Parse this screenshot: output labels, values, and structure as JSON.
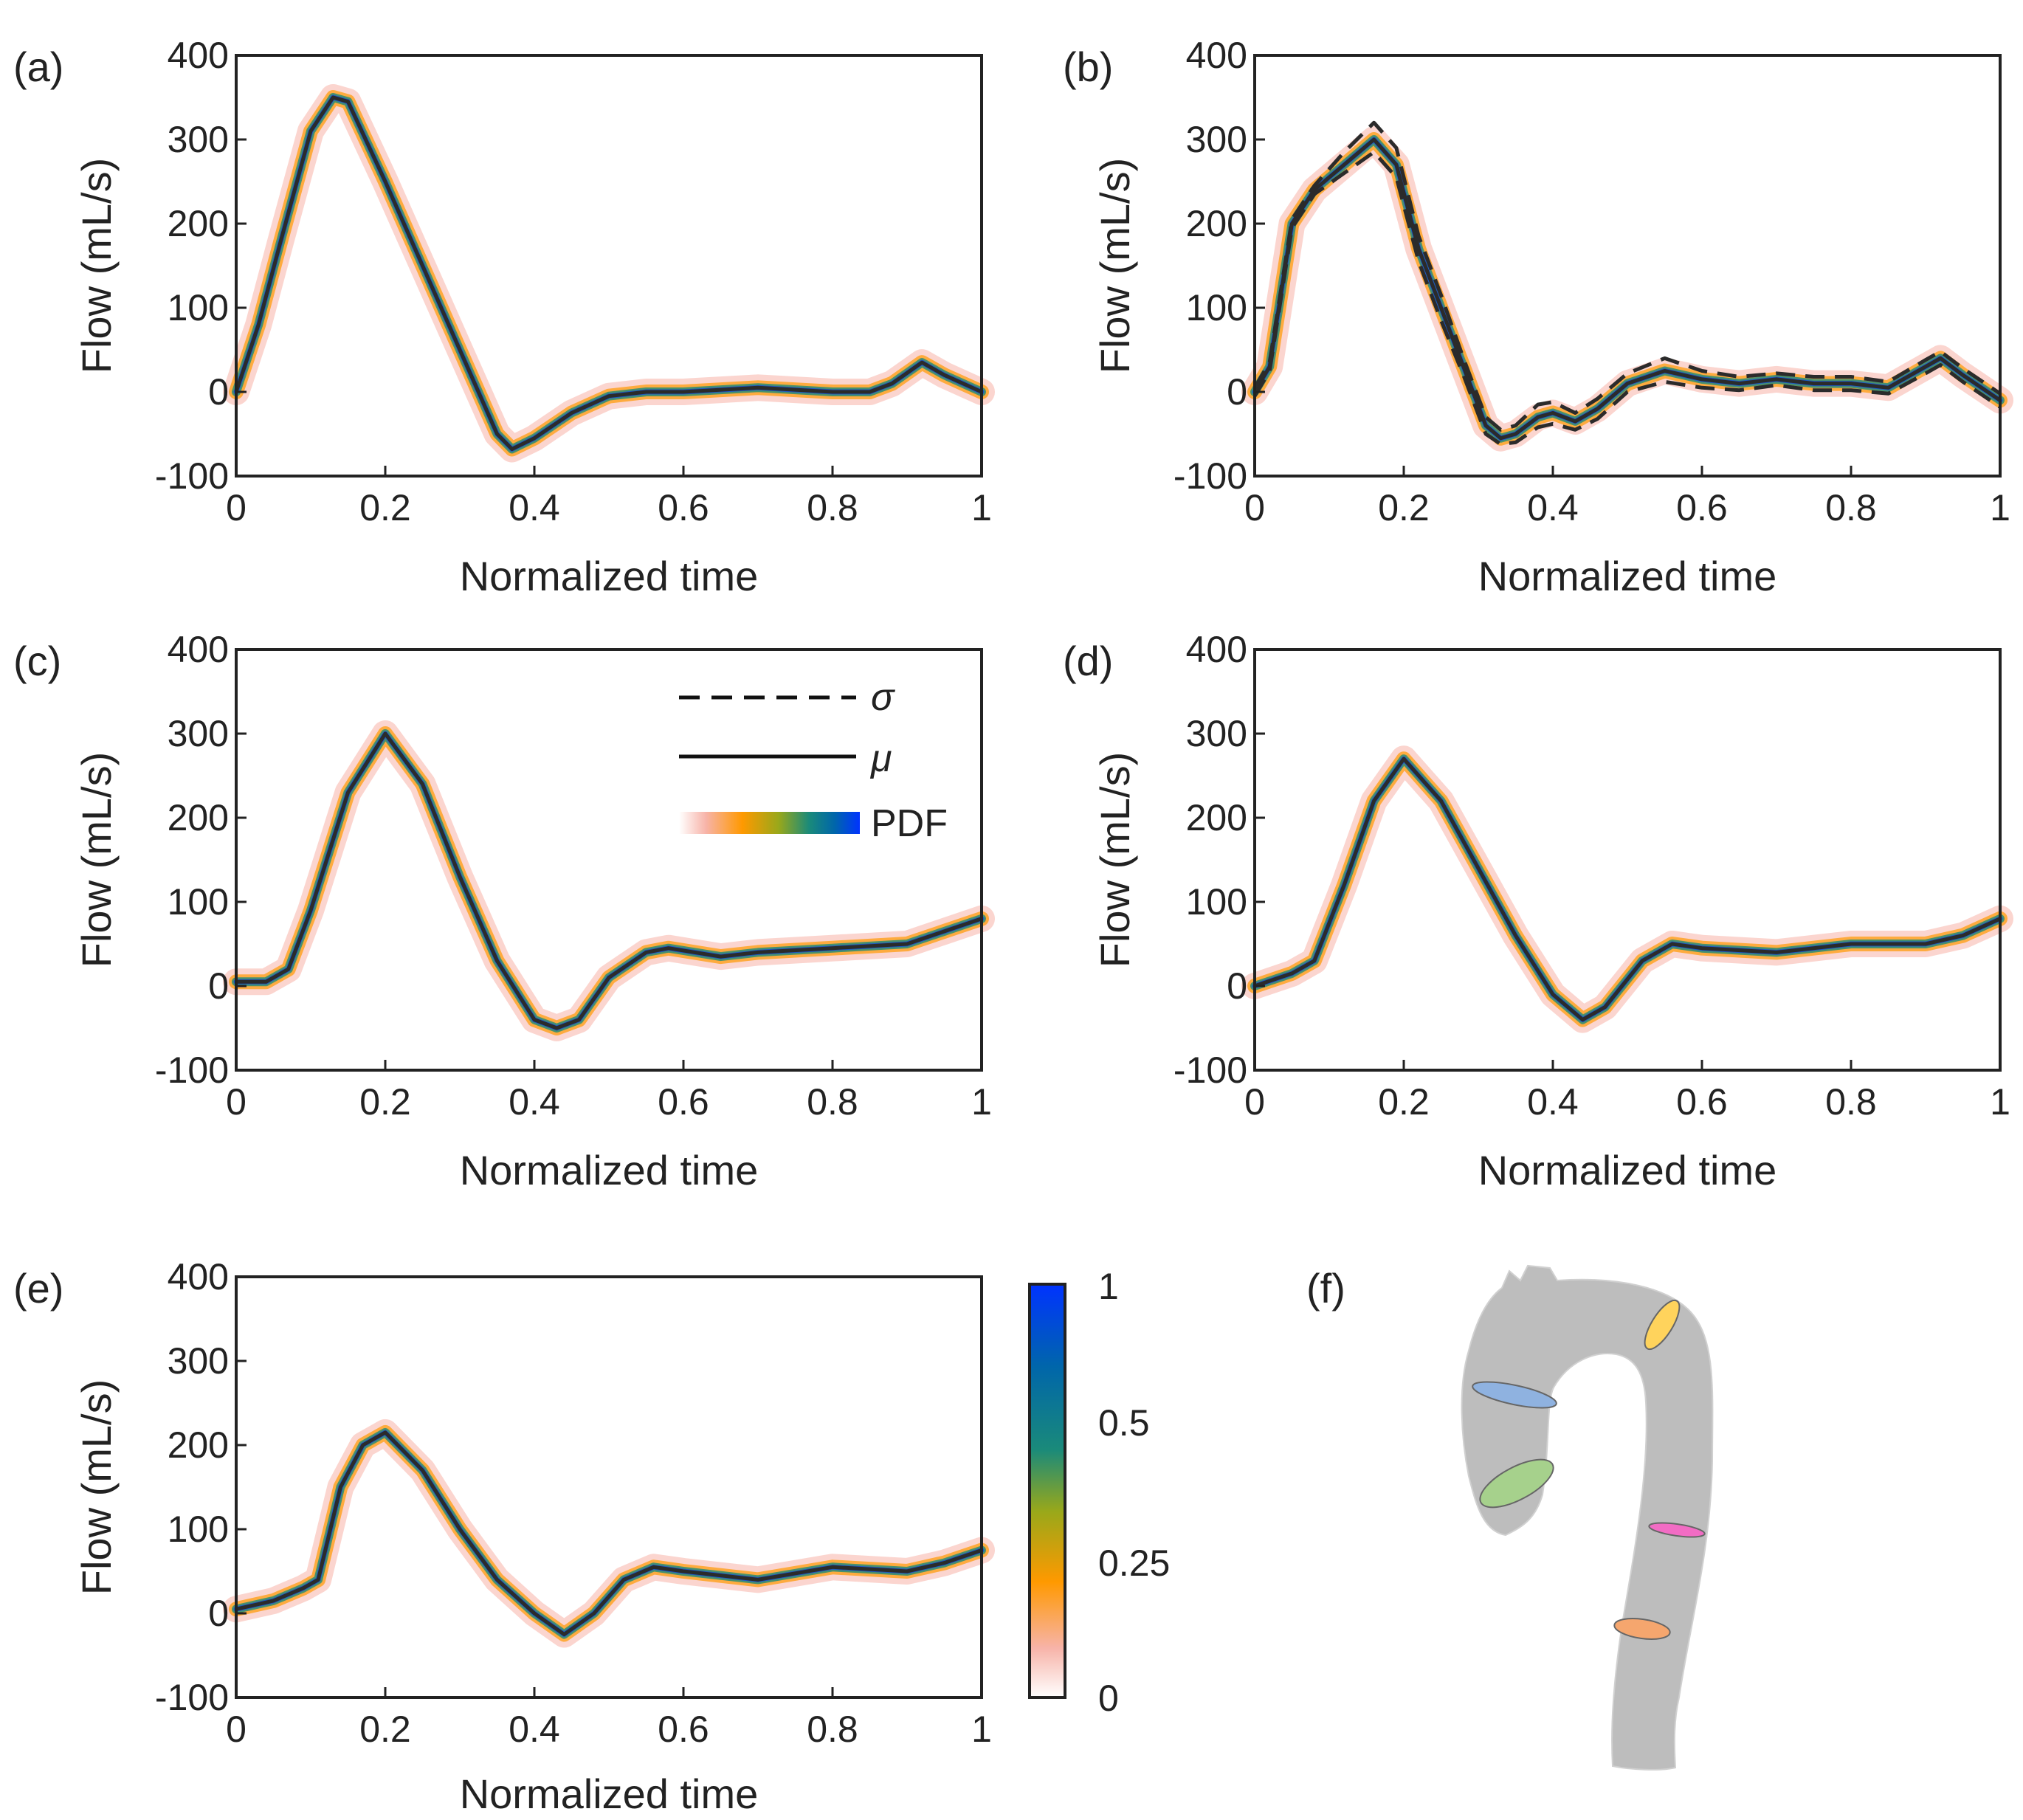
{
  "figure": {
    "colorbar": {
      "ticks": [
        "0",
        "0.25",
        "0.5",
        "1"
      ],
      "colors": [
        "#ffffff",
        "#f7b3a8",
        "#ff9900",
        "#99a81a",
        "#1a8a7a",
        "#0066aa",
        "#0033ff"
      ]
    },
    "legend": {
      "sigma_label": "σ",
      "mu_label": "μ",
      "pdf_label": "PDF"
    },
    "aorta_panel": {
      "label": "(f)",
      "vessel_color": "#bdbdbd",
      "planes": [
        {
          "name": "plane-blue",
          "color": "#8fb2e0"
        },
        {
          "name": "plane-green",
          "color": "#a6d18c"
        },
        {
          "name": "plane-yellow",
          "color": "#ffd35c"
        },
        {
          "name": "plane-magenta",
          "color": "#f26cc4"
        },
        {
          "name": "plane-orange",
          "color": "#f5a66e"
        }
      ]
    }
  },
  "chart_data": [
    {
      "type": "line",
      "panel": "(a)",
      "xlabel": "Normalized time",
      "ylabel": "Flow (mL/s)",
      "xlim": [
        0,
        1
      ],
      "ylim": [
        -100,
        400
      ],
      "xticks": [
        "0",
        "0.2",
        "0.4",
        "0.6",
        "0.8",
        "1"
      ],
      "yticks": [
        "-100",
        "0",
        "100",
        "200",
        "300",
        "400"
      ],
      "series": [
        {
          "name": "μ",
          "x": [
            0,
            0.03,
            0.06,
            0.1,
            0.13,
            0.15,
            0.2,
            0.25,
            0.3,
            0.35,
            0.37,
            0.4,
            0.45,
            0.5,
            0.55,
            0.6,
            0.7,
            0.8,
            0.85,
            0.88,
            0.92,
            0.95,
            1
          ],
          "y": [
            0,
            80,
            180,
            310,
            350,
            345,
            250,
            150,
            50,
            -50,
            -68,
            -55,
            -25,
            -5,
            0,
            0,
            5,
            0,
            0,
            10,
            35,
            20,
            0
          ]
        }
      ]
    },
    {
      "type": "line",
      "panel": "(b)",
      "xlabel": "Normalized time",
      "ylabel": "Flow (mL/s)",
      "xlim": [
        0,
        1
      ],
      "ylim": [
        -100,
        400
      ],
      "xticks": [
        "0",
        "0.2",
        "0.4",
        "0.6",
        "0.8",
        "1"
      ],
      "yticks": [
        "-100",
        "0",
        "100",
        "200",
        "300",
        "400"
      ],
      "series": [
        {
          "name": "μ",
          "x": [
            0,
            0.02,
            0.05,
            0.08,
            0.12,
            0.16,
            0.19,
            0.22,
            0.25,
            0.28,
            0.31,
            0.33,
            0.35,
            0.38,
            0.4,
            0.43,
            0.46,
            0.5,
            0.55,
            0.6,
            0.65,
            0.7,
            0.75,
            0.8,
            0.85,
            0.9,
            0.92,
            0.95,
            1
          ],
          "y": [
            0,
            30,
            200,
            240,
            270,
            300,
            270,
            170,
            100,
            30,
            -40,
            -55,
            -50,
            -30,
            -25,
            -35,
            -20,
            10,
            25,
            15,
            10,
            15,
            10,
            10,
            5,
            30,
            40,
            20,
            -10
          ]
        },
        {
          "name": "σ",
          "x": [
            0,
            0.02,
            0.05,
            0.08,
            0.12,
            0.16,
            0.19,
            0.22,
            0.25,
            0.28,
            0.31,
            0.33,
            0.35,
            0.38,
            0.4,
            0.43,
            0.46,
            0.5,
            0.55,
            0.6,
            0.65,
            0.7,
            0.75,
            0.8,
            0.85,
            0.9,
            0.92,
            0.95,
            1
          ],
          "y": [
            5,
            35,
            205,
            245,
            285,
            320,
            290,
            185,
            115,
            40,
            -30,
            -45,
            -40,
            -15,
            -12,
            -25,
            -8,
            22,
            40,
            25,
            18,
            22,
            18,
            18,
            12,
            38,
            48,
            28,
            -2
          ]
        },
        {
          "name": "σ",
          "x": [
            0,
            0.02,
            0.05,
            0.08,
            0.12,
            0.16,
            0.19,
            0.22,
            0.25,
            0.28,
            0.31,
            0.33,
            0.35,
            0.38,
            0.4,
            0.43,
            0.46,
            0.5,
            0.55,
            0.6,
            0.65,
            0.7,
            0.75,
            0.8,
            0.85,
            0.9,
            0.92,
            0.95,
            1
          ],
          "y": [
            -5,
            25,
            195,
            235,
            260,
            285,
            255,
            155,
            85,
            20,
            -50,
            -62,
            -60,
            -42,
            -38,
            -45,
            -32,
            0,
            12,
            5,
            2,
            8,
            2,
            2,
            -2,
            22,
            32,
            12,
            -18
          ]
        }
      ]
    },
    {
      "type": "line",
      "panel": "(c)",
      "xlabel": "Normalized time",
      "ylabel": "Flow (mL/s)",
      "xlim": [
        0,
        1
      ],
      "ylim": [
        -100,
        400
      ],
      "xticks": [
        "0",
        "0.2",
        "0.4",
        "0.6",
        "0.8",
        "1"
      ],
      "yticks": [
        "-100",
        "0",
        "100",
        "200",
        "300",
        "400"
      ],
      "series": [
        {
          "name": "μ",
          "x": [
            0,
            0.04,
            0.07,
            0.1,
            0.15,
            0.2,
            0.25,
            0.3,
            0.35,
            0.4,
            0.43,
            0.46,
            0.5,
            0.55,
            0.58,
            0.65,
            0.7,
            0.8,
            0.9,
            0.95,
            1
          ],
          "y": [
            5,
            5,
            20,
            90,
            230,
            300,
            240,
            130,
            30,
            -40,
            -50,
            -40,
            10,
            40,
            45,
            35,
            40,
            45,
            50,
            65,
            80
          ]
        }
      ]
    },
    {
      "type": "line",
      "panel": "(d)",
      "xlabel": "Normalized time",
      "ylabel": "Flow (mL/s)",
      "xlim": [
        0,
        1
      ],
      "ylim": [
        -100,
        400
      ],
      "xticks": [
        "0",
        "0.2",
        "0.4",
        "0.6",
        "0.8",
        "1"
      ],
      "yticks": [
        "-100",
        "0",
        "100",
        "200",
        "300",
        "400"
      ],
      "series": [
        {
          "name": "μ",
          "x": [
            0,
            0.05,
            0.08,
            0.12,
            0.16,
            0.2,
            0.25,
            0.3,
            0.35,
            0.4,
            0.44,
            0.47,
            0.52,
            0.56,
            0.6,
            0.7,
            0.8,
            0.9,
            0.95,
            1
          ],
          "y": [
            0,
            15,
            30,
            120,
            220,
            270,
            220,
            140,
            60,
            -10,
            -40,
            -25,
            30,
            50,
            45,
            40,
            50,
            50,
            60,
            80
          ]
        }
      ]
    },
    {
      "type": "line",
      "panel": "(e)",
      "xlabel": "Normalized time",
      "ylabel": "Flow (mL/s)",
      "xlim": [
        0,
        1
      ],
      "ylim": [
        -100,
        400
      ],
      "xticks": [
        "0",
        "0.2",
        "0.4",
        "0.6",
        "0.8",
        "1"
      ],
      "yticks": [
        "-100",
        "0",
        "100",
        "200",
        "300",
        "400"
      ],
      "series": [
        {
          "name": "μ",
          "x": [
            0,
            0.05,
            0.09,
            0.11,
            0.14,
            0.17,
            0.2,
            0.25,
            0.3,
            0.35,
            0.4,
            0.44,
            0.48,
            0.52,
            0.56,
            0.6,
            0.7,
            0.8,
            0.9,
            0.95,
            1
          ],
          "y": [
            5,
            15,
            30,
            40,
            150,
            200,
            215,
            170,
            100,
            40,
            0,
            -25,
            0,
            40,
            55,
            50,
            40,
            55,
            50,
            60,
            75
          ]
        }
      ]
    }
  ]
}
